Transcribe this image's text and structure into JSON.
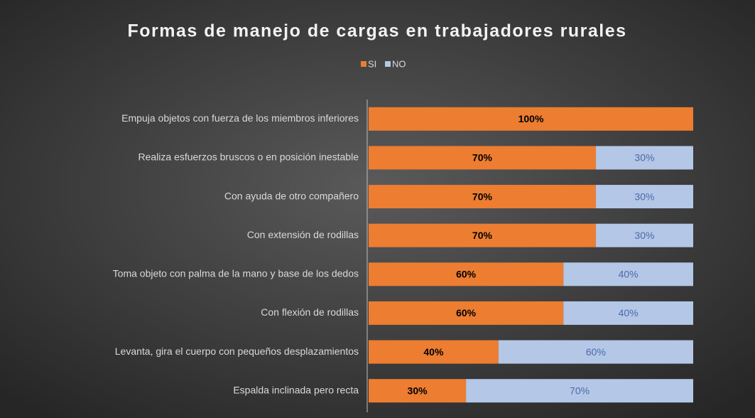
{
  "chart_data": {
    "type": "stacked-bar-horizontal",
    "title": "Formas de manejo de cargas en trabajadores rurales",
    "categories": [
      "Empuja objetos con fuerza de los miembros inferiores",
      "Realiza esfuerzos bruscos o en posición inestable",
      "Con ayuda de otro compañero",
      "Con extensión de rodillas",
      "Toma objeto con palma de la mano y base de los dedos",
      "Con flexión de rodillas",
      "Levanta, gira el cuerpo con pequeños desplazamientos",
      "Espalda inclinada pero recta"
    ],
    "series": [
      {
        "name": "SI",
        "color": "#ed7d31",
        "values": [
          100,
          70,
          70,
          70,
          60,
          60,
          40,
          30
        ],
        "value_labels": [
          "100%",
          "70%",
          "70%",
          "70%",
          "60%",
          "60%",
          "40%",
          "30%"
        ]
      },
      {
        "name": "NO",
        "color": "#b4c7e7",
        "values": [
          0,
          30,
          30,
          30,
          40,
          40,
          60,
          70
        ],
        "value_labels": [
          null,
          "30%",
          "30%",
          "30%",
          "40%",
          "40%",
          "60%",
          "70%"
        ]
      }
    ],
    "xlim": [
      0,
      100
    ],
    "legend": "top"
  }
}
